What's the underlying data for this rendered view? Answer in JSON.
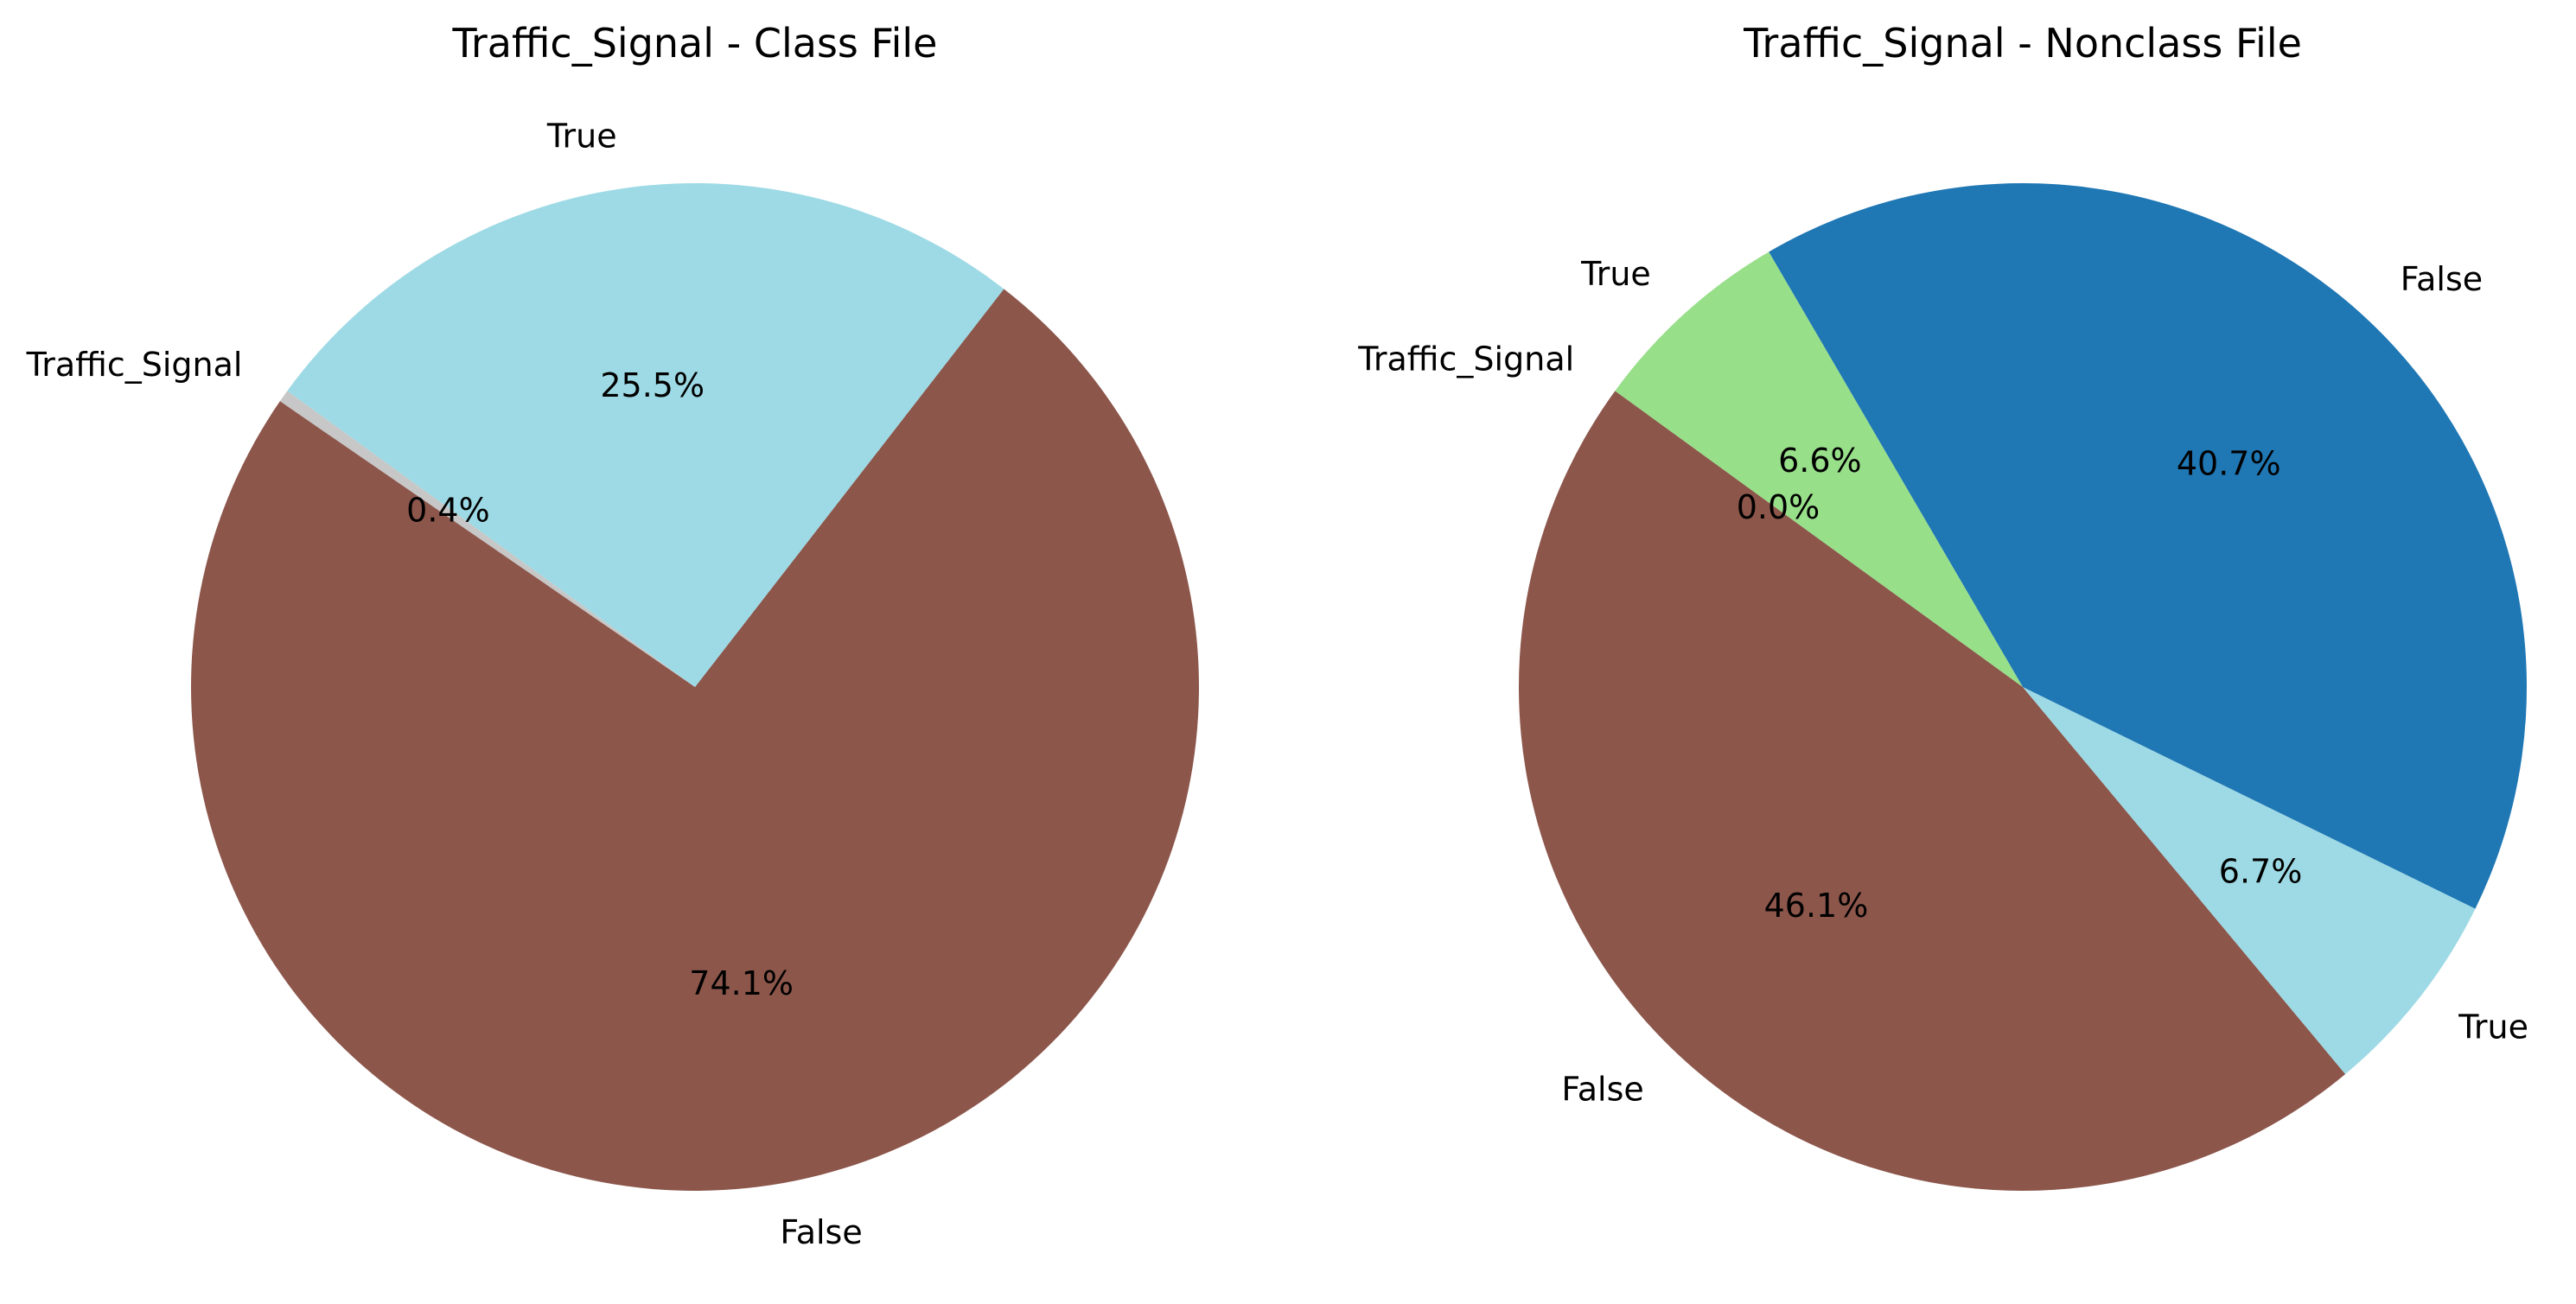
{
  "chart_data": [
    {
      "type": "pie",
      "title": "Traffic_Signal - Class File",
      "start_angle_deg": 144,
      "direction": "counterclockwise",
      "slices": [
        {
          "label": "Traffic_Signal",
          "value": 0.4,
          "pct_text": "0.4%",
          "color": "#c7c7c7"
        },
        {
          "label": "False",
          "value": 74.1,
          "pct_text": "74.1%",
          "color": "#8c564b"
        },
        {
          "label": "True",
          "value": 25.5,
          "pct_text": "25.5%",
          "color": "#9edae5"
        }
      ]
    },
    {
      "type": "pie",
      "title": "Traffic_Signal - Nonclass File",
      "start_angle_deg": 144,
      "direction": "counterclockwise",
      "slices": [
        {
          "label": "Traffic_Signal",
          "value": 0.0,
          "pct_text": "0.0%",
          "color": "#c7c7c7"
        },
        {
          "label": "False",
          "value": 46.1,
          "pct_text": "46.1%",
          "color": "#8c564b"
        },
        {
          "label": "True",
          "value": 6.7,
          "pct_text": "6.7%",
          "color": "#9edae5"
        },
        {
          "label": "False",
          "value": 40.7,
          "pct_text": "40.7%",
          "color": "#1f77b4"
        },
        {
          "label": "True",
          "value": 6.6,
          "pct_text": "6.6%",
          "color": "#98df8a"
        }
      ]
    }
  ]
}
